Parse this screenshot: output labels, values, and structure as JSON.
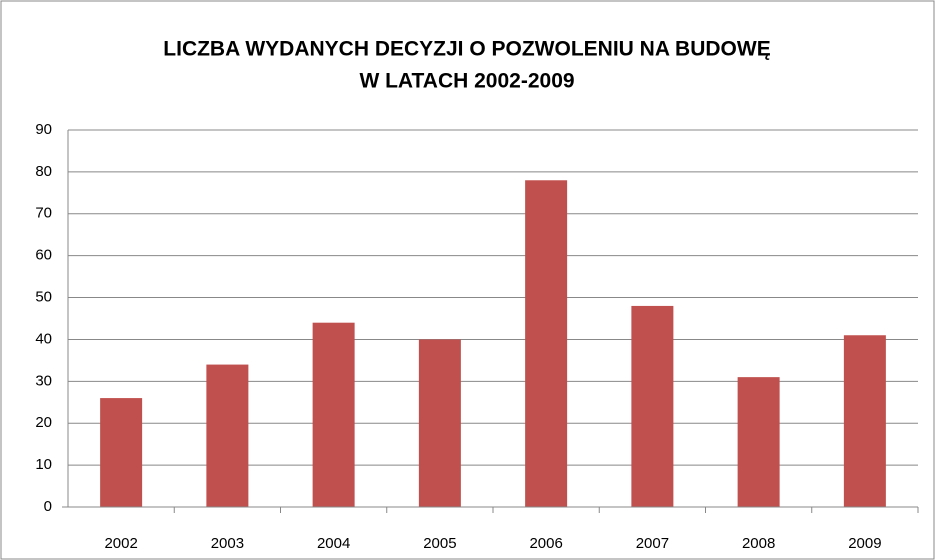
{
  "chart_data": {
    "type": "bar",
    "title": [
      "LICZBA WYDANYCH DECYZJI O POZWOLENIU NA BUDOWĘ",
      "W LATACH 2002-2009"
    ],
    "categories": [
      "2002",
      "2003",
      "2004",
      "2005",
      "2006",
      "2007",
      "2008",
      "2009"
    ],
    "values": [
      26,
      34,
      44,
      40,
      78,
      48,
      31,
      41
    ],
    "color": "#c0504d",
    "ylim": [
      0,
      90
    ],
    "yticks": [
      0,
      10,
      20,
      30,
      40,
      50,
      60,
      70,
      80,
      90
    ],
    "grid": true
  }
}
